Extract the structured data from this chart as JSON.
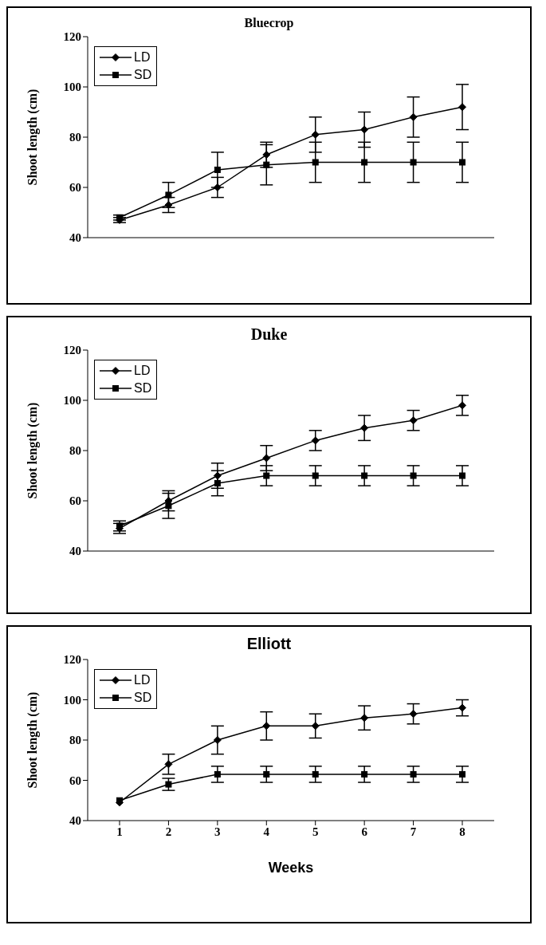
{
  "chart_data": [
    {
      "type": "line",
      "title": "Bluecrop",
      "ylabel": "Shoot length (cm)",
      "categories": [
        null,
        null,
        null,
        null,
        null,
        null,
        null,
        null
      ],
      "ylim": [
        40,
        120
      ],
      "yticks": [
        40,
        60,
        80,
        100,
        120
      ],
      "tick_labels": "y",
      "grid": false,
      "legend": "top left",
      "line_style": "solid",
      "series": [
        {
          "name": "LD",
          "color": "#000000",
          "marker": "diamond",
          "values": [
            47,
            53,
            60,
            73,
            81,
            83,
            88,
            92
          ],
          "errors": [
            1,
            3,
            4,
            5,
            7,
            7,
            8,
            9
          ]
        },
        {
          "name": "SD",
          "color": "#000000",
          "marker": "square",
          "values": [
            48,
            57,
            67,
            69,
            70,
            70,
            70,
            70
          ],
          "errors": [
            1,
            5,
            7,
            8,
            8,
            8,
            8,
            8
          ]
        }
      ]
    },
    {
      "type": "line",
      "title": "Duke",
      "ylabel": "Shoot length (cm)",
      "categories": [
        null,
        null,
        null,
        null,
        null,
        null,
        null,
        null
      ],
      "ylim": [
        40,
        120
      ],
      "yticks": [
        40,
        60,
        80,
        100,
        120
      ],
      "tick_labels": "y",
      "grid": false,
      "legend": "top left",
      "line_style": "solid",
      "series": [
        {
          "name": "LD",
          "color": "#000000",
          "marker": "diamond",
          "values": [
            49,
            60,
            70,
            77,
            84,
            89,
            92,
            98
          ],
          "errors": [
            2,
            4,
            5,
            5,
            4,
            5,
            4,
            4
          ]
        },
        {
          "name": "SD",
          "color": "#000000",
          "marker": "square",
          "values": [
            50,
            58,
            67,
            70,
            70,
            70,
            70,
            70
          ],
          "errors": [
            2,
            5,
            5,
            4,
            4,
            4,
            4,
            4
          ]
        }
      ]
    },
    {
      "type": "line",
      "title": "Elliott",
      "xlabel": "Weeks",
      "ylabel": "Shoot length (cm)",
      "categories": [
        "1",
        "2",
        "3",
        "4",
        "5",
        "6",
        "7",
        "8"
      ],
      "ylim": [
        40,
        120
      ],
      "yticks": [
        40,
        60,
        80,
        100,
        120
      ],
      "grid": false,
      "legend": "top left",
      "line_style": "solid",
      "series": [
        {
          "name": "LD",
          "color": "#000000",
          "marker": "diamond",
          "values": [
            49,
            68,
            80,
            87,
            87,
            91,
            93,
            96
          ],
          "errors": [
            null,
            5,
            7,
            7,
            6,
            6,
            5,
            4
          ]
        },
        {
          "name": "SD",
          "color": "#000000",
          "marker": "square",
          "values": [
            50,
            58,
            63,
            63,
            63,
            63,
            63,
            63
          ],
          "errors": [
            null,
            3,
            4,
            4,
            4,
            4,
            4,
            4
          ]
        }
      ]
    }
  ]
}
